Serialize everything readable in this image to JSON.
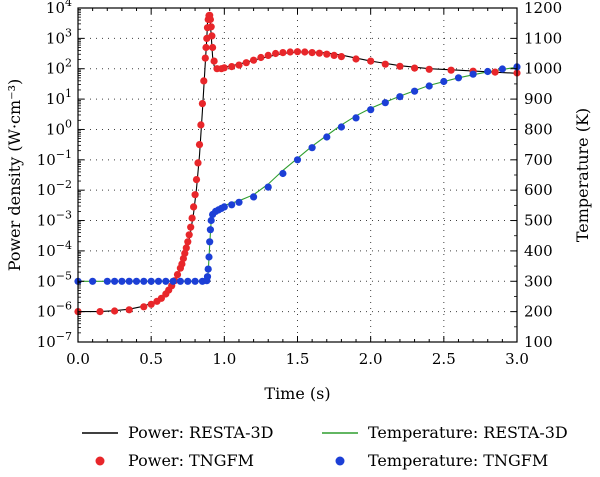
{
  "chart_data": {
    "type": "line",
    "xlabel": "Time (s)",
    "ylabel_left": "Power density (W·cm⁻³)",
    "ylabel_right": "Temperature (K)",
    "xlim": [
      0,
      3.0
    ],
    "ylim_left_log10": [
      -7,
      4
    ],
    "ylim_right": [
      100,
      1200
    ],
    "yscale_left": "log",
    "grid": true,
    "x_ticks": [
      "0.0",
      "0.5",
      "1.0",
      "1.5",
      "2.0",
      "2.5",
      "3.0"
    ],
    "left_tick_exponents": [
      -7,
      -6,
      -5,
      -4,
      -3,
      -2,
      -1,
      0,
      1,
      2,
      3,
      4
    ],
    "right_ticks": [
      100,
      200,
      300,
      400,
      500,
      600,
      700,
      800,
      900,
      1000,
      1100,
      1200
    ],
    "series": [
      {
        "name": "Power: RESTA-3D",
        "axis": "left",
        "style": "line",
        "color": "#000000",
        "x": [
          0.0,
          0.15,
          0.25,
          0.35,
          0.45,
          0.52,
          0.58,
          0.63,
          0.67,
          0.7,
          0.73,
          0.75,
          0.77,
          0.79,
          0.81,
          0.83,
          0.85,
          0.87,
          0.88,
          0.885,
          0.89,
          0.895,
          0.9,
          0.905,
          0.91,
          0.915,
          0.92,
          0.93,
          0.94,
          0.95,
          0.97,
          1.0,
          1.1,
          1.2,
          1.3,
          1.4,
          1.5,
          1.6,
          1.7,
          1.8,
          1.9,
          2.0,
          2.2,
          2.4,
          2.6,
          2.8,
          3.0
        ],
        "y_log10": [
          -6.0,
          -6.0,
          -5.97,
          -5.92,
          -5.82,
          -5.68,
          -5.48,
          -5.22,
          -4.92,
          -4.6,
          -4.2,
          -3.85,
          -3.35,
          -2.75,
          -1.95,
          -0.85,
          0.6,
          2.2,
          3.0,
          3.5,
          3.72,
          3.78,
          3.7,
          3.45,
          3.1,
          2.75,
          2.4,
          2.1,
          2.0,
          1.97,
          2.0,
          2.05,
          2.15,
          2.28,
          2.4,
          2.5,
          2.55,
          2.55,
          2.52,
          2.45,
          2.35,
          2.25,
          2.1,
          2.0,
          1.95,
          1.9,
          1.85
        ]
      },
      {
        "name": "Temperature: RESTA-3D",
        "axis": "right",
        "style": "line",
        "color": "#2e9e2e",
        "x": [
          0.0,
          0.5,
          0.85,
          0.88,
          0.89,
          0.9,
          0.91,
          0.92,
          0.95,
          1.0,
          1.1,
          1.2,
          1.3,
          1.4,
          1.5,
          1.6,
          1.7,
          1.8,
          1.9,
          2.0,
          2.2,
          2.4,
          2.6,
          2.8,
          3.0
        ],
        "y": [
          300,
          300,
          300,
          302,
          330,
          420,
          500,
          530,
          540,
          550,
          565,
          585,
          620,
          665,
          705,
          745,
          780,
          815,
          845,
          870,
          910,
          945,
          970,
          990,
          1005
        ]
      },
      {
        "name": "Power: TNGFM",
        "axis": "left",
        "style": "markers",
        "color": "#e8262a",
        "x": [
          0.0,
          0.15,
          0.25,
          0.35,
          0.45,
          0.5,
          0.54,
          0.57,
          0.6,
          0.62,
          0.64,
          0.66,
          0.68,
          0.7,
          0.71,
          0.72,
          0.73,
          0.74,
          0.75,
          0.76,
          0.77,
          0.78,
          0.79,
          0.8,
          0.81,
          0.82,
          0.83,
          0.84,
          0.85,
          0.86,
          0.87,
          0.875,
          0.88,
          0.885,
          0.89,
          0.895,
          0.9,
          0.905,
          0.91,
          0.915,
          0.92,
          0.93,
          0.95,
          0.98,
          1.0,
          1.05,
          1.1,
          1.15,
          1.2,
          1.25,
          1.3,
          1.35,
          1.4,
          1.45,
          1.5,
          1.55,
          1.6,
          1.65,
          1.7,
          1.75,
          1.8,
          1.9,
          2.0,
          2.1,
          2.2,
          2.3,
          2.4,
          2.55,
          2.7,
          2.85,
          3.0
        ],
        "y_log10": [
          -6.0,
          -6.0,
          -5.98,
          -5.94,
          -5.84,
          -5.76,
          -5.66,
          -5.56,
          -5.42,
          -5.29,
          -5.15,
          -4.98,
          -4.78,
          -4.57,
          -4.43,
          -4.25,
          -4.08,
          -3.9,
          -3.7,
          -3.47,
          -3.22,
          -2.92,
          -2.55,
          -2.15,
          -1.65,
          -1.1,
          -0.5,
          0.15,
          0.85,
          1.6,
          2.35,
          2.7,
          3.0,
          3.35,
          3.62,
          3.75,
          3.76,
          3.62,
          3.38,
          3.08,
          2.7,
          2.25,
          2.0,
          2.0,
          2.03,
          2.07,
          2.12,
          2.2,
          2.28,
          2.37,
          2.44,
          2.5,
          2.53,
          2.55,
          2.56,
          2.55,
          2.53,
          2.51,
          2.48,
          2.44,
          2.4,
          2.32,
          2.25,
          2.15,
          2.08,
          2.02,
          1.98,
          1.95,
          1.92,
          1.89,
          1.86
        ]
      },
      {
        "name": "Temperature: TNGFM",
        "axis": "right",
        "style": "markers",
        "color": "#1c3fd6",
        "x": [
          0.0,
          0.1,
          0.2,
          0.25,
          0.3,
          0.35,
          0.4,
          0.45,
          0.5,
          0.55,
          0.6,
          0.65,
          0.7,
          0.75,
          0.8,
          0.85,
          0.88,
          0.885,
          0.89,
          0.895,
          0.9,
          0.905,
          0.91,
          0.92,
          0.94,
          0.96,
          0.98,
          1.0,
          1.05,
          1.1,
          1.2,
          1.3,
          1.4,
          1.5,
          1.6,
          1.7,
          1.8,
          1.9,
          2.0,
          2.1,
          2.2,
          2.3,
          2.4,
          2.5,
          2.6,
          2.7,
          2.8,
          2.9,
          3.0
        ],
        "y": [
          300,
          300,
          300,
          300,
          300,
          300,
          300,
          300,
          300,
          300,
          300,
          300,
          300,
          300,
          300,
          300,
          302,
          315,
          340,
          380,
          430,
          470,
          500,
          520,
          530,
          535,
          540,
          545,
          552,
          560,
          578,
          610,
          655,
          700,
          740,
          775,
          808,
          838,
          865,
          888,
          908,
          926,
          943,
          958,
          970,
          982,
          991,
          999,
          1006
        ]
      }
    ],
    "legend": {
      "placement": "bottom",
      "entries": [
        "Power: RESTA-3D",
        "Temperature: RESTA-3D",
        "Power: TNGFM",
        "Temperature: TNGFM"
      ]
    }
  }
}
